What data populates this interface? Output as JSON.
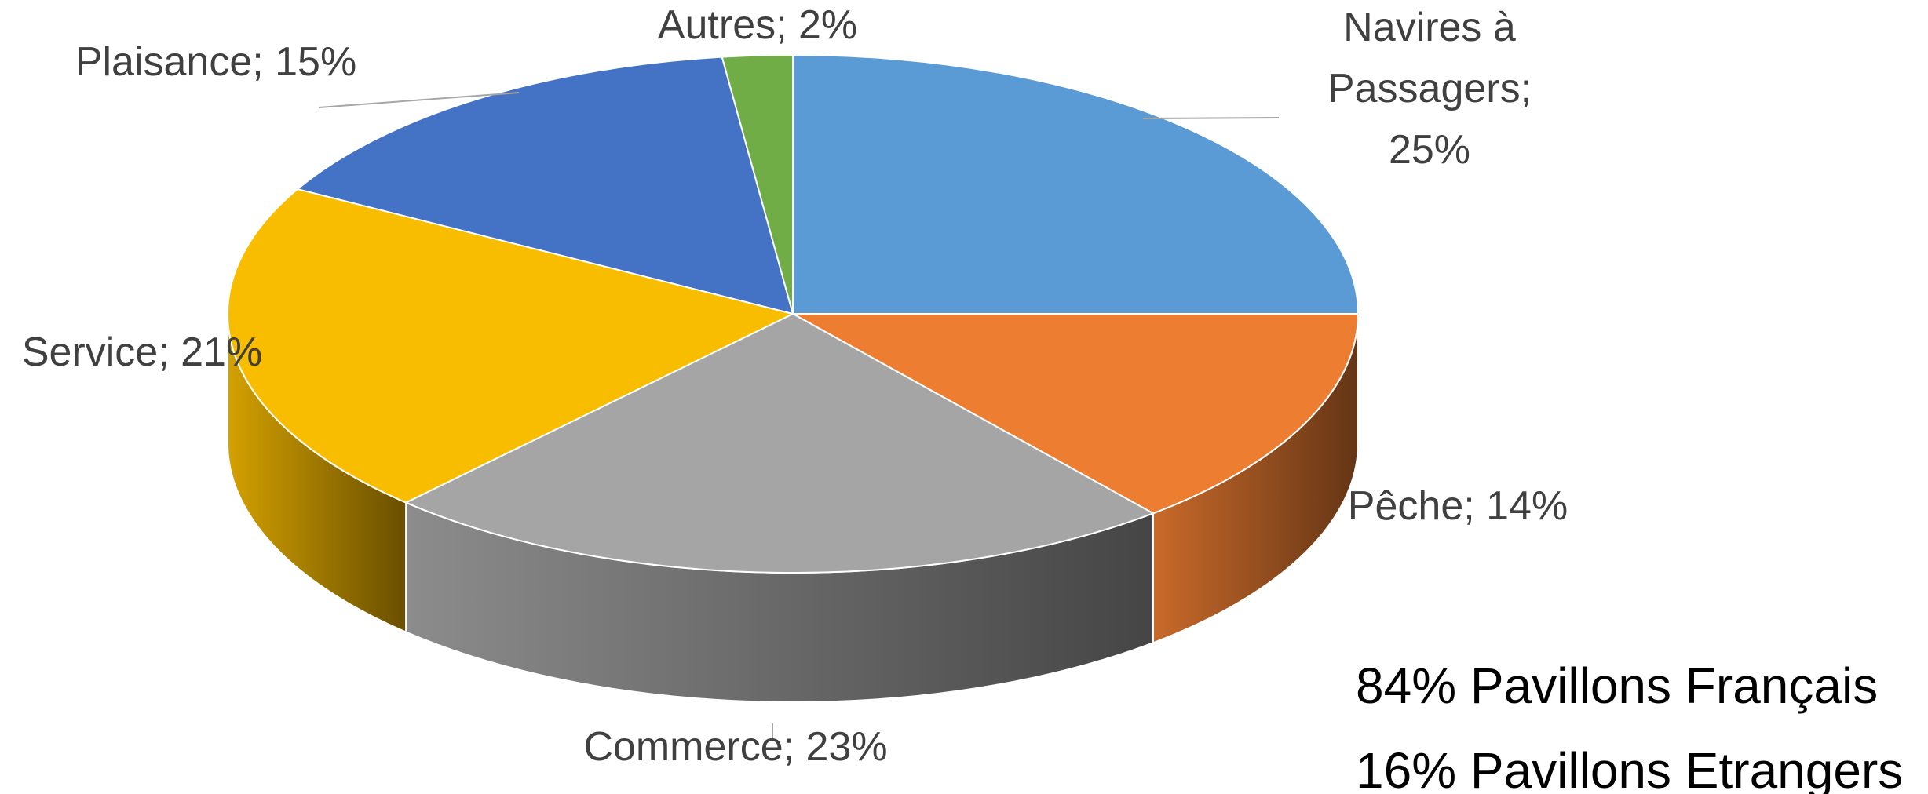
{
  "chart_data": {
    "type": "pie3d",
    "values": [
      25,
      14,
      23,
      21,
      15,
      2
    ],
    "value_labels": [
      "Navires à Passagers; 25%",
      "Pêche; 14%",
      "Commerce; 23%",
      "Service; 21%",
      "Plaisance; 15%",
      "Autres; 2%"
    ],
    "colors": [
      "#5b9bd5",
      "#ed7d31",
      "#a5a5a5",
      "#f9bd00",
      "#4472c4",
      "#70ad47"
    ],
    "annotations": [
      "84% Pavillons Français",
      "16% Pavillons Etrangers"
    ]
  }
}
